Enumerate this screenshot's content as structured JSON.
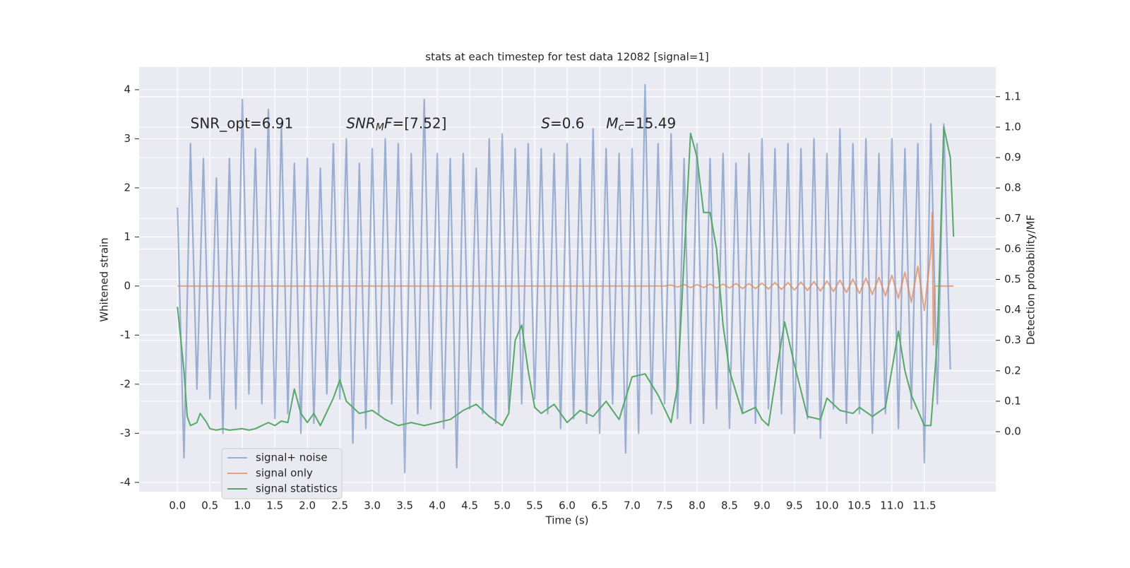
{
  "chart_data": {
    "type": "line",
    "title": "stats at each timestep for test data 12082 [signal=1]",
    "xlabel": "Time (s)",
    "ylabel": "Whitened strain",
    "y2label": "Detection probability/MF",
    "xlim": [
      -0.59,
      12.6
    ],
    "ylim": [
      -4.19,
      4.46
    ],
    "y2lim": [
      -0.197,
      1.197
    ],
    "xticks": [
      {
        "value": 0,
        "label": "0.0"
      },
      {
        "value": 0.5,
        "label": "0.5"
      },
      {
        "value": 1,
        "label": "1.0"
      },
      {
        "value": 1.5,
        "label": "1.5"
      },
      {
        "value": 2,
        "label": "2.0"
      },
      {
        "value": 2.5,
        "label": "2.5"
      },
      {
        "value": 3,
        "label": "3.0"
      },
      {
        "value": 3.5,
        "label": "3.5"
      },
      {
        "value": 4,
        "label": "4.0"
      },
      {
        "value": 4.5,
        "label": "4.5"
      },
      {
        "value": 5,
        "label": "5.0"
      },
      {
        "value": 5.5,
        "label": "5.5"
      },
      {
        "value": 6,
        "label": "6.0"
      },
      {
        "value": 6.5,
        "label": "6.5"
      },
      {
        "value": 7,
        "label": "7.0"
      },
      {
        "value": 7.5,
        "label": "7.5"
      },
      {
        "value": 8,
        "label": "8.0"
      },
      {
        "value": 8.5,
        "label": "8.5"
      },
      {
        "value": 9,
        "label": "9.0"
      },
      {
        "value": 9.5,
        "label": "9.5"
      },
      {
        "value": 10,
        "label": "10.0"
      },
      {
        "value": 10.5,
        "label": "10.5"
      },
      {
        "value": 11,
        "label": "11.0"
      },
      {
        "value": 11.5,
        "label": "11.5"
      }
    ],
    "yticks": [
      -4,
      -3,
      -2,
      -1,
      0,
      1,
      2,
      3,
      4
    ],
    "y2ticks": [
      {
        "value": 0,
        "label": "0.0"
      },
      {
        "value": 0.1,
        "label": "0.1"
      },
      {
        "value": 0.2,
        "label": "0.2"
      },
      {
        "value": 0.3,
        "label": "0.3"
      },
      {
        "value": 0.4,
        "label": "0.4"
      },
      {
        "value": 0.5,
        "label": "0.5"
      },
      {
        "value": 0.6,
        "label": "0.6"
      },
      {
        "value": 0.7,
        "label": "0.7"
      },
      {
        "value": 0.8,
        "label": "0.8"
      },
      {
        "value": 0.9,
        "label": "0.9"
      },
      {
        "value": 1,
        "label": "1.0"
      },
      {
        "value": 1.1,
        "label": "1.1"
      }
    ],
    "grid": true,
    "legend": "lower left",
    "annotations": [
      {
        "x": 0.2,
        "parts": [
          {
            "text": "SNR_opt=6.91",
            "style": "normal"
          }
        ]
      },
      {
        "x": 2.6,
        "parts": [
          {
            "text": "SNR",
            "style": "italic"
          },
          {
            "text": "M",
            "style": "sub"
          },
          {
            "text": "F",
            "style": "italic"
          },
          {
            "text": "=[7.52]",
            "style": "normal"
          }
        ]
      },
      {
        "x": 5.6,
        "parts": [
          {
            "text": "S",
            "style": "italic"
          },
          {
            "text": "=0.6",
            "style": "normal"
          }
        ]
      },
      {
        "x": 6.6,
        "parts": [
          {
            "text": "M",
            "style": "italic"
          },
          {
            "text": "c",
            "style": "sub"
          },
          {
            "text": "=15.49",
            "style": "normal"
          }
        ]
      }
    ],
    "annotation_y": 3.3,
    "series": [
      {
        "name": "signal+ noise",
        "color": "#4c72b0",
        "opacity": 0.5,
        "x": [
          0.0,
          0.1,
          0.2,
          0.3,
          0.4,
          0.5,
          0.6,
          0.7,
          0.8,
          0.9,
          1.0,
          1.1,
          1.2,
          1.3,
          1.4,
          1.5,
          1.6,
          1.7,
          1.8,
          1.9,
          2.0,
          2.1,
          2.2,
          2.3,
          2.4,
          2.5,
          2.6,
          2.7,
          2.8,
          2.9,
          3.0,
          3.1,
          3.2,
          3.3,
          3.4,
          3.5,
          3.6,
          3.7,
          3.8,
          3.9,
          4.0,
          4.1,
          4.2,
          4.3,
          4.4,
          4.5,
          4.6,
          4.7,
          4.8,
          4.9,
          5.0,
          5.1,
          5.2,
          5.3,
          5.4,
          5.5,
          5.6,
          5.7,
          5.8,
          5.9,
          6.0,
          6.1,
          6.2,
          6.3,
          6.4,
          6.5,
          6.6,
          6.7,
          6.8,
          6.9,
          7.0,
          7.1,
          7.2,
          7.3,
          7.4,
          7.5,
          7.6,
          7.7,
          7.8,
          7.9,
          8.0,
          8.1,
          8.2,
          8.3,
          8.4,
          8.5,
          8.6,
          8.7,
          8.8,
          8.9,
          9.0,
          9.1,
          9.2,
          9.3,
          9.4,
          9.5,
          9.6,
          9.7,
          9.8,
          9.9,
          10.0,
          10.1,
          10.2,
          10.3,
          10.4,
          10.5,
          10.6,
          10.7,
          10.8,
          10.9,
          11.0,
          11.1,
          11.2,
          11.3,
          11.4,
          11.5,
          11.6,
          11.7,
          11.8,
          11.9
        ],
        "values": [
          1.6,
          -3.5,
          2.9,
          -2.1,
          2.6,
          -2.3,
          2.2,
          -3.0,
          2.6,
          -2.5,
          3.8,
          -2.2,
          2.8,
          -2.4,
          3.6,
          -2.7,
          3.3,
          -2.6,
          2.5,
          -3.0,
          2.6,
          -2.8,
          2.4,
          -2.2,
          2.9,
          -2.3,
          3.0,
          -3.2,
          2.5,
          -2.9,
          2.8,
          -2.6,
          3.0,
          -2.4,
          2.9,
          -3.8,
          2.7,
          -2.6,
          3.8,
          -2.5,
          2.7,
          -2.9,
          2.6,
          -3.7,
          2.7,
          -2.5,
          2.4,
          -2.6,
          3.0,
          -2.8,
          3.1,
          -2.5,
          2.8,
          -2.4,
          2.9,
          -2.3,
          2.8,
          -2.6,
          2.7,
          -2.9,
          2.9,
          -2.7,
          2.6,
          -2.8,
          3.2,
          -3.0,
          2.8,
          -2.4,
          2.7,
          -3.4,
          2.8,
          -3.0,
          4.1,
          -2.6,
          2.9,
          -2.4,
          3.1,
          -2.7,
          2.6,
          -2.8,
          2.9,
          -2.8,
          2.6,
          -2.5,
          2.7,
          -2.9,
          2.5,
          -2.6,
          2.7,
          -2.8,
          3.0,
          -2.5,
          2.8,
          -2.6,
          2.9,
          -3.0,
          2.8,
          -2.7,
          3.0,
          -3.1,
          2.7,
          -2.5,
          3.2,
          -2.8,
          2.9,
          -2.6,
          3.0,
          -3.0,
          2.7,
          -2.6,
          3.0,
          -2.9,
          2.8,
          -2.5,
          2.9,
          -3.6,
          3.3,
          -2.4,
          3.3,
          -1.7
        ]
      },
      {
        "name": "signal only",
        "color": "#dd8452",
        "opacity": 0.7,
        "x": [
          0.0,
          7.5,
          7.6,
          7.7,
          7.8,
          7.9,
          8.0,
          8.1,
          8.2,
          8.3,
          8.4,
          8.5,
          8.6,
          8.7,
          8.8,
          8.9,
          9.0,
          9.1,
          9.2,
          9.3,
          9.4,
          9.5,
          9.6,
          9.7,
          9.8,
          9.9,
          10.0,
          10.1,
          10.2,
          10.3,
          10.4,
          10.5,
          10.6,
          10.7,
          10.8,
          10.9,
          11.0,
          11.1,
          11.2,
          11.3,
          11.4,
          11.5,
          11.6,
          11.62,
          11.64,
          11.66,
          11.95
        ],
        "values": [
          0,
          0,
          0.02,
          -0.02,
          0.03,
          -0.03,
          0.03,
          -0.03,
          0.04,
          -0.04,
          0.04,
          -0.04,
          0.05,
          -0.05,
          0.05,
          -0.05,
          0.06,
          -0.06,
          0.07,
          -0.07,
          0.07,
          -0.08,
          0.08,
          -0.09,
          0.09,
          -0.1,
          0.1,
          -0.11,
          0.12,
          -0.13,
          0.14,
          -0.15,
          0.16,
          -0.17,
          0.18,
          -0.2,
          0.22,
          -0.25,
          0.28,
          -0.33,
          0.4,
          -0.5,
          0.7,
          1.5,
          -1.2,
          0,
          0
        ]
      },
      {
        "name": "signal statistics",
        "color": "#55a868",
        "opacity": 1,
        "axis": "y2",
        "x": [
          0,
          0.1,
          0.15,
          0.2,
          0.3,
          0.35,
          0.45,
          0.5,
          0.6,
          0.7,
          0.8,
          1.0,
          1.1,
          1.2,
          1.3,
          1.4,
          1.5,
          1.6,
          1.7,
          1.8,
          1.9,
          2.0,
          2.1,
          2.2,
          2.4,
          2.5,
          2.6,
          2.8,
          3.0,
          3.2,
          3.4,
          3.6,
          3.8,
          4.0,
          4.2,
          4.4,
          4.6,
          4.8,
          5.0,
          5.1,
          5.2,
          5.3,
          5.4,
          5.5,
          5.6,
          5.8,
          6.0,
          6.2,
          6.4,
          6.6,
          6.8,
          7.0,
          7.2,
          7.4,
          7.6,
          7.7,
          7.9,
          8.0,
          8.1,
          8.2,
          8.3,
          8.4,
          8.5,
          8.7,
          8.9,
          9.0,
          9.1,
          9.3,
          9.35,
          9.5,
          9.7,
          9.9,
          10.0,
          10.2,
          10.4,
          10.5,
          10.7,
          10.9,
          11.1,
          11.2,
          11.3,
          11.5,
          11.6,
          11.7,
          11.8,
          11.9,
          11.95
        ],
        "values": [
          0.41,
          0.2,
          0.05,
          0.02,
          0.03,
          0.06,
          0.03,
          0.01,
          0.005,
          0.01,
          0.005,
          0.01,
          0.005,
          0.01,
          0.02,
          0.03,
          0.02,
          0.035,
          0.03,
          0.14,
          0.06,
          0.03,
          0.06,
          0.02,
          0.11,
          0.17,
          0.1,
          0.06,
          0.07,
          0.04,
          0.02,
          0.03,
          0.02,
          0.03,
          0.04,
          0.07,
          0.09,
          0.05,
          0.02,
          0.06,
          0.3,
          0.35,
          0.2,
          0.08,
          0.06,
          0.09,
          0.03,
          0.07,
          0.05,
          0.1,
          0.04,
          0.18,
          0.19,
          0.12,
          0.03,
          0.15,
          0.98,
          0.9,
          0.72,
          0.72,
          0.6,
          0.35,
          0.2,
          0.06,
          0.08,
          0.04,
          0.02,
          0.3,
          0.36,
          0.22,
          0.05,
          0.04,
          0.11,
          0.07,
          0.06,
          0.08,
          0.05,
          0.08,
          0.33,
          0.2,
          0.12,
          0.02,
          0.02,
          0.3,
          1.0,
          0.9,
          0.64
        ]
      }
    ]
  }
}
